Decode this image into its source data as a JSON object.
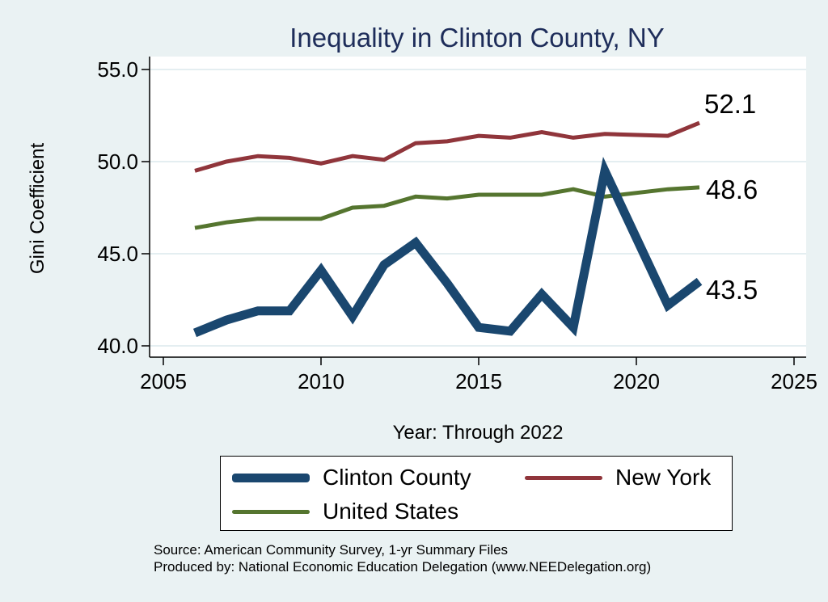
{
  "chart_data": {
    "type": "line",
    "title": "Inequality in Clinton County, NY",
    "xlabel": "Year: Through 2022",
    "ylabel": "Gini Coefficient",
    "xlim": [
      2005,
      2025
    ],
    "ylim": [
      40,
      55
    ],
    "xticks": [
      "2005",
      "2010",
      "2015",
      "2020",
      "2025"
    ],
    "yticks": [
      "40.0",
      "45.0",
      "50.0",
      "55.0"
    ],
    "grid": true,
    "legend_position": "bottom",
    "series": [
      {
        "name": "Clinton County",
        "color": "#1a476f",
        "x": [
          2006,
          2007,
          2008,
          2009,
          2010,
          2011,
          2012,
          2013,
          2014,
          2015,
          2016,
          2017,
          2018,
          2019,
          2021,
          2022
        ],
        "values": [
          40.7,
          41.4,
          41.9,
          41.9,
          44.1,
          41.6,
          44.4,
          45.6,
          43.4,
          41.0,
          40.8,
          42.8,
          41.0,
          49.5,
          42.2,
          43.5
        ],
        "end_label": "43.5"
      },
      {
        "name": "New York",
        "color": "#90353b",
        "x": [
          2006,
          2007,
          2008,
          2009,
          2010,
          2011,
          2012,
          2013,
          2014,
          2015,
          2016,
          2017,
          2018,
          2019,
          2021,
          2022
        ],
        "values": [
          49.5,
          50.0,
          50.3,
          50.2,
          49.9,
          50.3,
          50.1,
          51.0,
          51.1,
          51.4,
          51.3,
          51.6,
          51.3,
          51.5,
          51.4,
          52.1
        ],
        "end_label": "52.1"
      },
      {
        "name": "United States",
        "color": "#55752f",
        "x": [
          2006,
          2007,
          2008,
          2009,
          2010,
          2011,
          2012,
          2013,
          2014,
          2015,
          2016,
          2017,
          2018,
          2019,
          2021,
          2022
        ],
        "values": [
          46.4,
          46.7,
          46.9,
          46.9,
          46.9,
          47.5,
          47.6,
          48.1,
          48.0,
          48.2,
          48.2,
          48.2,
          48.5,
          48.1,
          48.5,
          48.6
        ],
        "end_label": "48.6"
      }
    ]
  },
  "legend": {
    "items": [
      "Clinton County",
      "New York",
      "United States"
    ]
  },
  "source_text": {
    "line1": "Source: American Community Survey, 1-yr Summary Files",
    "line2": "Produced by: National Economic Education Delegation (www.NEEDelegation.org)"
  }
}
